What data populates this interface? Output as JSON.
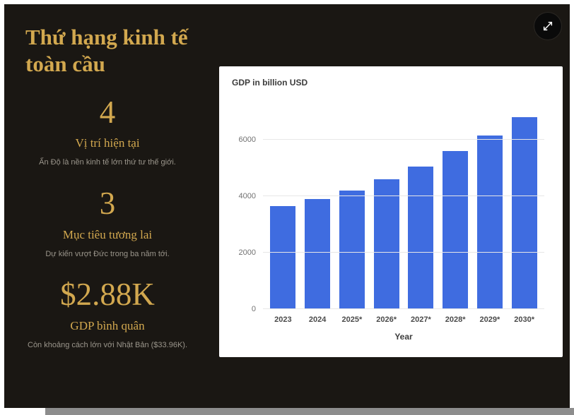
{
  "theme": {
    "slide_background": "#1a1713",
    "gold": "#d2a84f",
    "muted_text": "#9a958b",
    "card_background": "#ffffff",
    "bar_color": "#3f6ce0",
    "grid_color": "#e7e7e7"
  },
  "controls": {
    "fullscreen_icon": "expand-arrows"
  },
  "sidebar": {
    "title": "Thứ hạng kinh tế toàn cầu",
    "stats": [
      {
        "value": "4",
        "label": "Vị trí hiện tại",
        "description": "Ấn Độ là nền kinh tế lớn thứ tư thế giới."
      },
      {
        "value": "3",
        "label": "Mục tiêu tương lai",
        "description": "Dự kiến vượt Đức trong ba năm tới."
      },
      {
        "value": "$2.88K",
        "label": "GDP bình quân",
        "description": "Còn khoảng cách lớn với Nhật Bản ($33.96K)."
      }
    ]
  },
  "chart_data": {
    "type": "bar",
    "title": "GDP in billion USD",
    "xlabel": "Year",
    "ylabel": "",
    "categories": [
      "2023",
      "2024",
      "2025*",
      "2026*",
      "2027*",
      "2028*",
      "2029*",
      "2030*"
    ],
    "values": [
      3650,
      3900,
      4200,
      4600,
      5050,
      5600,
      6150,
      6800
    ],
    "yticks": [
      0,
      2000,
      4000,
      6000
    ],
    "ylim": [
      0,
      7200
    ],
    "grid": true,
    "legend": false,
    "bar_color": "#3f6ce0"
  }
}
